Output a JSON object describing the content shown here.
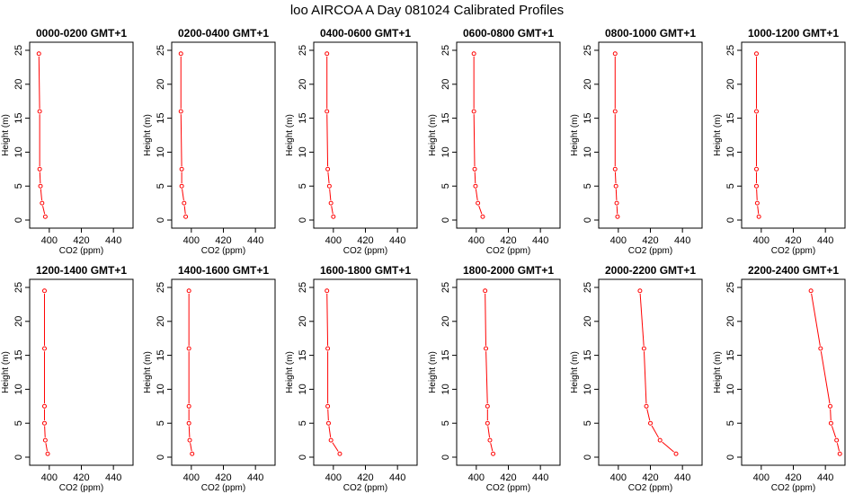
{
  "figure": {
    "title": "loo AIRCOA A  Day 081024  Calibrated Profiles",
    "line_color": "#ff0000",
    "point_color": "#ff0000",
    "frame_color": "#000000"
  },
  "chart_data": [
    {
      "type": "line",
      "title": "0000-0200 GMT+1",
      "xlabel": "CO2 (ppm)",
      "ylabel": "Height (m)",
      "xlim": [
        390,
        450
      ],
      "ylim": [
        0,
        25
      ],
      "xticks": [
        400,
        420,
        440
      ],
      "yticks": [
        0,
        5,
        10,
        15,
        20,
        25
      ],
      "grid": false,
      "series": [
        {
          "x": [
            397.5,
            395.5,
            394.5,
            394,
            394,
            393.5
          ],
          "y": [
            0.5,
            2.5,
            5,
            7.5,
            16,
            24.5
          ]
        }
      ]
    },
    {
      "type": "line",
      "title": "0200-0400 GMT+1",
      "xlabel": "CO2 (ppm)",
      "ylabel": "Height (m)",
      "xlim": [
        390,
        450
      ],
      "ylim": [
        0,
        25
      ],
      "xticks": [
        400,
        420,
        440
      ],
      "yticks": [
        0,
        5,
        10,
        15,
        20,
        25
      ],
      "grid": false,
      "series": [
        {
          "x": [
            396.5,
            395.5,
            394,
            394,
            393.5,
            393.5
          ],
          "y": [
            0.5,
            2.5,
            5,
            7.5,
            16,
            24.5
          ]
        }
      ]
    },
    {
      "type": "line",
      "title": "0400-0600 GMT+1",
      "xlabel": "CO2 (ppm)",
      "ylabel": "Height (m)",
      "xlim": [
        390,
        450
      ],
      "ylim": [
        0,
        25
      ],
      "xticks": [
        400,
        420,
        440
      ],
      "yticks": [
        0,
        5,
        10,
        15,
        20,
        25
      ],
      "grid": false,
      "series": [
        {
          "x": [
            400,
            398.5,
            397.5,
            396.5,
            396,
            396
          ],
          "y": [
            0.5,
            2.5,
            5,
            7.5,
            16,
            24.5
          ]
        }
      ]
    },
    {
      "type": "line",
      "title": "0600-0800 GMT+1",
      "xlabel": "CO2 (ppm)",
      "ylabel": "Height (m)",
      "xlim": [
        390,
        450
      ],
      "ylim": [
        0,
        25
      ],
      "xticks": [
        400,
        420,
        440
      ],
      "yticks": [
        0,
        5,
        10,
        15,
        20,
        25
      ],
      "grid": false,
      "series": [
        {
          "x": [
            404,
            401,
            399.5,
            399,
            398.5,
            398.5
          ],
          "y": [
            0.5,
            2.5,
            5,
            7.5,
            16,
            24.5
          ]
        }
      ]
    },
    {
      "type": "line",
      "title": "0800-1000 GMT+1",
      "xlabel": "CO2 (ppm)",
      "ylabel": "Height (m)",
      "xlim": [
        390,
        450
      ],
      "ylim": [
        0,
        25
      ],
      "xticks": [
        400,
        420,
        440
      ],
      "yticks": [
        0,
        5,
        10,
        15,
        20,
        25
      ],
      "grid": false,
      "series": [
        {
          "x": [
            399.5,
            399,
            398.5,
            398,
            398,
            398
          ],
          "y": [
            0.5,
            2.5,
            5,
            7.5,
            16,
            24.5
          ]
        }
      ]
    },
    {
      "type": "line",
      "title": "1000-1200 GMT+1",
      "xlabel": "CO2 (ppm)",
      "ylabel": "Height (m)",
      "xlim": [
        390,
        450
      ],
      "ylim": [
        0,
        25
      ],
      "xticks": [
        400,
        420,
        440
      ],
      "yticks": [
        0,
        5,
        10,
        15,
        20,
        25
      ],
      "grid": false,
      "series": [
        {
          "x": [
            398.5,
            397.5,
            397,
            397,
            397,
            397
          ],
          "y": [
            0.5,
            2.5,
            5,
            7.5,
            16,
            24.5
          ]
        }
      ]
    },
    {
      "type": "line",
      "title": "1200-1400 GMT+1",
      "xlabel": "CO2 (ppm)",
      "ylabel": "Height (m)",
      "xlim": [
        390,
        450
      ],
      "ylim": [
        0,
        25
      ],
      "xticks": [
        400,
        420,
        440
      ],
      "yticks": [
        0,
        5,
        10,
        15,
        20,
        25
      ],
      "grid": false,
      "series": [
        {
          "x": [
            399,
            397.5,
            397,
            397,
            397,
            397
          ],
          "y": [
            0.5,
            2.5,
            5,
            7.5,
            16,
            24.5
          ]
        }
      ]
    },
    {
      "type": "line",
      "title": "1400-1600 GMT+1",
      "xlabel": "CO2 (ppm)",
      "ylabel": "Height (m)",
      "xlim": [
        390,
        450
      ],
      "ylim": [
        0,
        25
      ],
      "xticks": [
        400,
        420,
        440
      ],
      "yticks": [
        0,
        5,
        10,
        15,
        20,
        25
      ],
      "grid": false,
      "series": [
        {
          "x": [
            400.5,
            399,
            398.5,
            398.5,
            398.5,
            398.5
          ],
          "y": [
            0.5,
            2.5,
            5,
            7.5,
            16,
            24.5
          ]
        }
      ]
    },
    {
      "type": "line",
      "title": "1600-1800 GMT+1",
      "xlabel": "CO2 (ppm)",
      "ylabel": "Height (m)",
      "xlim": [
        390,
        450
      ],
      "ylim": [
        0,
        25
      ],
      "xticks": [
        400,
        420,
        440
      ],
      "yticks": [
        0,
        5,
        10,
        15,
        20,
        25
      ],
      "grid": false,
      "series": [
        {
          "x": [
            404,
            398.5,
            397,
            396.5,
            396.5,
            396
          ],
          "y": [
            0.5,
            2.5,
            5,
            7.5,
            16,
            24.5
          ]
        }
      ]
    },
    {
      "type": "line",
      "title": "1800-2000 GMT+1",
      "xlabel": "CO2 (ppm)",
      "ylabel": "Height (m)",
      "xlim": [
        390,
        450
      ],
      "ylim": [
        0,
        25
      ],
      "xticks": [
        400,
        420,
        440
      ],
      "yticks": [
        0,
        5,
        10,
        15,
        20,
        25
      ],
      "grid": false,
      "series": [
        {
          "x": [
            410.5,
            408.5,
            407,
            407,
            406,
            405.5
          ],
          "y": [
            0.5,
            2.5,
            5,
            7.5,
            16,
            24.5
          ]
        }
      ]
    },
    {
      "type": "line",
      "title": "2000-2200 GMT+1",
      "xlabel": "CO2 (ppm)",
      "ylabel": "Height (m)",
      "xlim": [
        390,
        450
      ],
      "ylim": [
        0,
        25
      ],
      "xticks": [
        400,
        420,
        440
      ],
      "yticks": [
        0,
        5,
        10,
        15,
        20,
        25
      ],
      "grid": false,
      "series": [
        {
          "x": [
            436,
            426,
            420,
            417.5,
            416,
            413.5
          ],
          "y": [
            0.5,
            2.5,
            5,
            7.5,
            16,
            24.5
          ]
        }
      ]
    },
    {
      "type": "line",
      "title": "2200-2400 GMT+1",
      "xlabel": "CO2 (ppm)",
      "ylabel": "Height (m)",
      "xlim": [
        390,
        450
      ],
      "ylim": [
        0,
        25
      ],
      "xticks": [
        400,
        420,
        440
      ],
      "yticks": [
        0,
        5,
        10,
        15,
        20,
        25
      ],
      "grid": false,
      "series": [
        {
          "x": [
            449,
            447,
            443.5,
            443,
            437,
            431
          ],
          "y": [
            0.5,
            2.5,
            5,
            7.5,
            16,
            24.5
          ]
        }
      ]
    }
  ]
}
